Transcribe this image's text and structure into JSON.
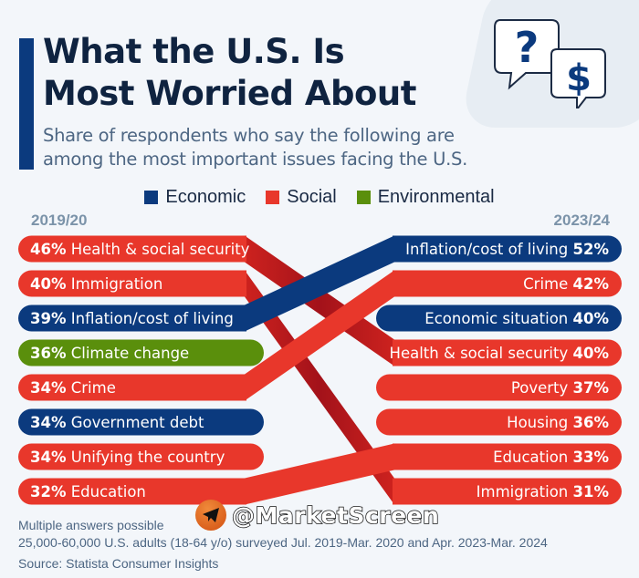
{
  "header": {
    "title_line1": "What the U.S. Is",
    "title_line2": "Most Worried About",
    "subtitle_line1": "Share of respondents who say the following are",
    "subtitle_line2": "among the most important issues facing the U.S.",
    "icon": "question-dollar-speech-bubbles-icon"
  },
  "colors": {
    "Economic": "#0b3a7e",
    "Social": "#e8372b",
    "Environmental": "#5a8f0c",
    "ribbon_dark_red": "#b3151a",
    "title": "#0f2340",
    "background": "#f3f6fa"
  },
  "chart_data": {
    "type": "slope",
    "title": "What the U.S. Is Most Worried About",
    "subtitle": "Share of respondents who say the following are among the most important issues facing the U.S.",
    "legend": [
      "Economic",
      "Social",
      "Environmental"
    ],
    "legend_position": "top-center",
    "left_label": "2019/20",
    "right_label": "2023/24",
    "unit": "%",
    "left": [
      {
        "rank": 1,
        "label": "Health & social security",
        "value": 46,
        "category": "Social"
      },
      {
        "rank": 2,
        "label": "Immigration",
        "value": 40,
        "category": "Social"
      },
      {
        "rank": 3,
        "label": "Inflation/cost of living",
        "value": 39,
        "category": "Economic"
      },
      {
        "rank": 4,
        "label": "Climate change",
        "value": 36,
        "category": "Environmental"
      },
      {
        "rank": 5,
        "label": "Crime",
        "value": 34,
        "category": "Social"
      },
      {
        "rank": 6,
        "label": "Government debt",
        "value": 34,
        "category": "Economic"
      },
      {
        "rank": 7,
        "label": "Unifying the country",
        "value": 34,
        "category": "Social"
      },
      {
        "rank": 8,
        "label": "Education",
        "value": 32,
        "category": "Social"
      }
    ],
    "right": [
      {
        "rank": 1,
        "label": "Inflation/cost of living",
        "value": 52,
        "category": "Economic"
      },
      {
        "rank": 2,
        "label": "Crime",
        "value": 42,
        "category": "Social"
      },
      {
        "rank": 3,
        "label": "Economic situation",
        "value": 40,
        "category": "Economic"
      },
      {
        "rank": 4,
        "label": "Health & social security",
        "value": 40,
        "category": "Social"
      },
      {
        "rank": 5,
        "label": "Poverty",
        "value": 37,
        "category": "Social"
      },
      {
        "rank": 6,
        "label": "Housing",
        "value": 36,
        "category": "Social"
      },
      {
        "rank": 7,
        "label": "Education",
        "value": 33,
        "category": "Social"
      },
      {
        "rank": 8,
        "label": "Immigration",
        "value": 31,
        "category": "Social"
      }
    ],
    "links": [
      {
        "label": "Health & social security",
        "from_rank": 1,
        "to_rank": 4,
        "style": "dark"
      },
      {
        "label": "Immigration",
        "from_rank": 2,
        "to_rank": 8,
        "style": "dark"
      },
      {
        "label": "Inflation/cost of living",
        "from_rank": 3,
        "to_rank": 1,
        "style": "normal"
      },
      {
        "label": "Crime",
        "from_rank": 5,
        "to_rank": 2,
        "style": "normal"
      },
      {
        "label": "Education",
        "from_rank": 8,
        "to_rank": 7,
        "style": "normal"
      }
    ]
  },
  "footer": {
    "note1": "Multiple answers possible",
    "note2": "25,000-60,000 U.S. adults (18-64 y/o) surveyed Jul. 2019-Mar. 2020 and Apr. 2023-Mar. 2024",
    "source": "Source: Statista Consumer Insights"
  },
  "watermark": {
    "text": "@MarketScreen",
    "icon": "telegram-icon"
  }
}
